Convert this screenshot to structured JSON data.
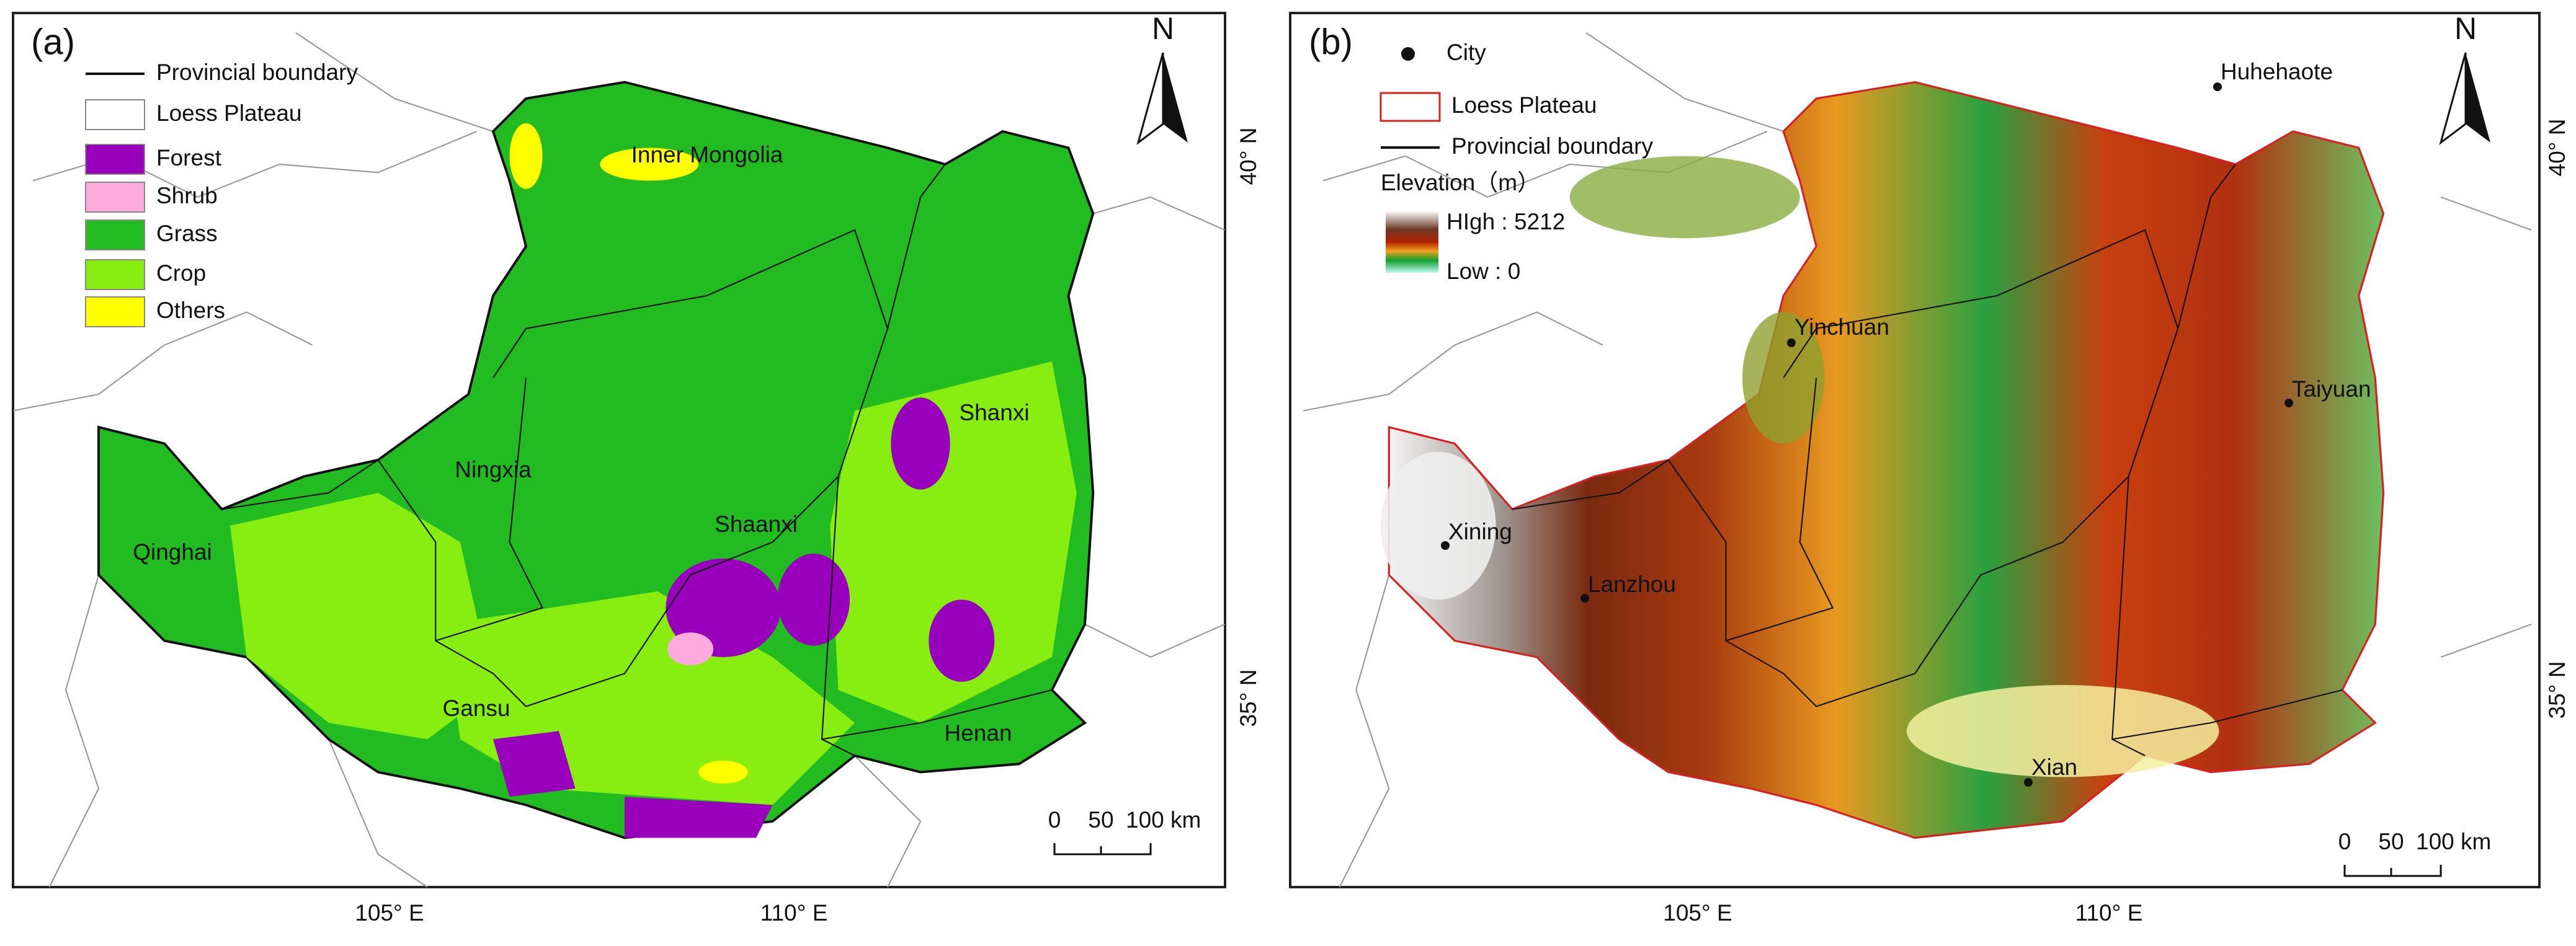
{
  "panels": [
    {
      "label": "(a)",
      "legend": [
        {
          "label": "Provincial boundary"
        },
        {
          "label": "Loess Plateau",
          "color": "#ffffff"
        },
        {
          "label": "Forest",
          "color": "#9900bb"
        },
        {
          "label": "Shrub",
          "color": "#ffaadd"
        },
        {
          "label": "Grass",
          "color": "#22bb22"
        },
        {
          "label": "Crop",
          "color": "#88ee11"
        },
        {
          "label": "Others",
          "color": "#ffff00"
        }
      ],
      "regions": [
        "Inner Mongolia",
        "Shanxi",
        "Ningxia",
        "Shaanxi",
        "Qinghai",
        "Gansu",
        "Henan"
      ],
      "x_ticks": [
        "105° E",
        "110° E"
      ],
      "y_ticks": [
        "40° N",
        "35° N"
      ],
      "scale_bar": [
        "0",
        "50",
        "100 km"
      ],
      "north": "N"
    },
    {
      "label": "(b)",
      "legend": [
        {
          "label": "City"
        },
        {
          "label": "Loess Plateau"
        },
        {
          "label": "Provincial boundary"
        }
      ],
      "elevation": {
        "title": "Elevation（m）",
        "high": "HIgh : 5212",
        "low": "Low : 0"
      },
      "cities": [
        "Huhehaote",
        "Yinchuan",
        "Taiyuan",
        "Xining",
        "Lanzhou",
        "Xian"
      ],
      "x_ticks": [
        "105° E",
        "110° E"
      ],
      "y_ticks": [
        "40° N",
        "35° N"
      ],
      "scale_bar": [
        "0",
        "50",
        "100 km"
      ],
      "north": "N"
    }
  ]
}
